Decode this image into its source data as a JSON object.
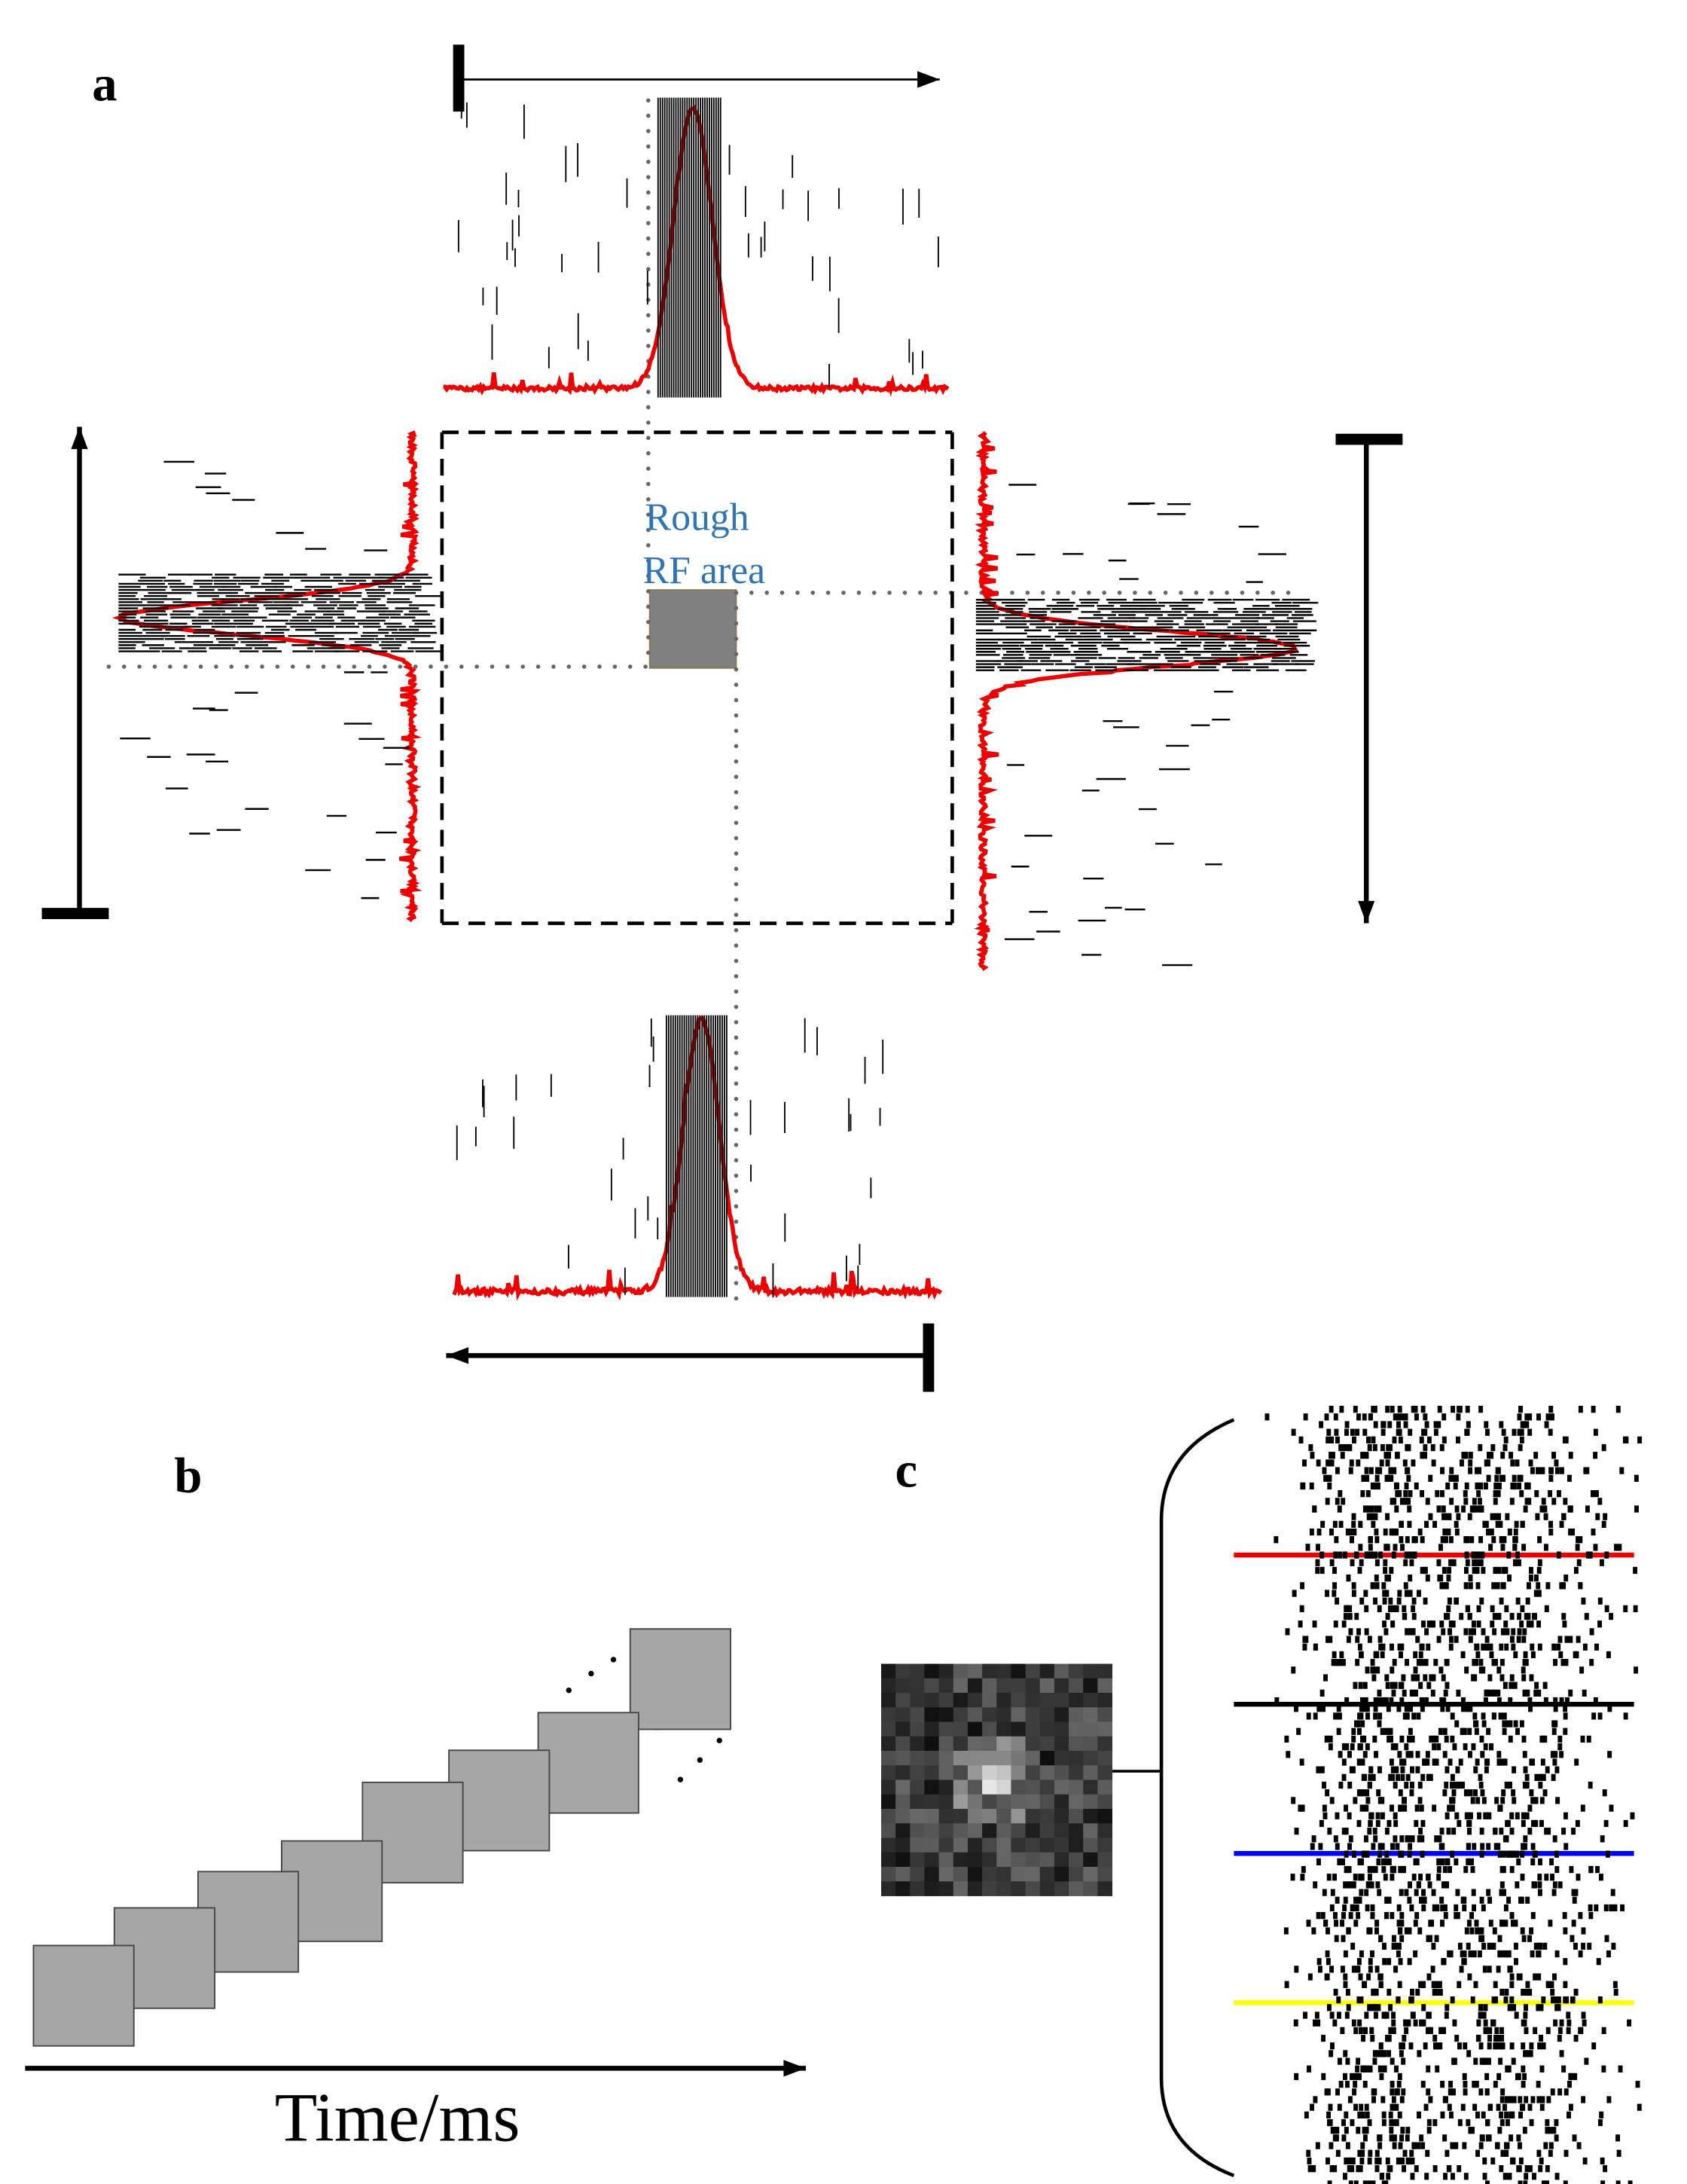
{
  "panels": {
    "a": {
      "label": "a",
      "annotation": [
        "Rough",
        "RF area"
      ]
    },
    "b": {
      "label": "b",
      "axis_label": "Time/ms"
    },
    "c": {
      "label": "c"
    }
  }
}
